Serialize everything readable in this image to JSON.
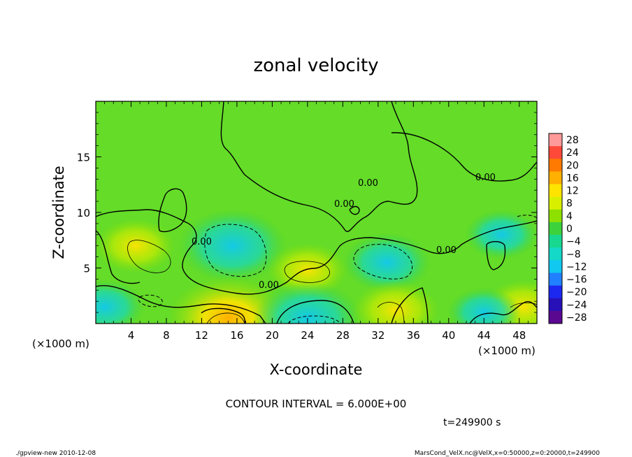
{
  "chart_data": {
    "type": "heatmap",
    "title": "zonal velocity",
    "xlabel": "X-coordinate",
    "ylabel": "Z-coordinate",
    "x_unit_label": "(×1000 m)",
    "x_unit_label_right": "(×1000 m)",
    "xlim": [
      0,
      50
    ],
    "ylim": [
      0,
      20
    ],
    "x_ticks": [
      4,
      8,
      12,
      16,
      20,
      24,
      28,
      32,
      36,
      40,
      44,
      48
    ],
    "y_ticks": [
      5,
      10,
      15
    ],
    "contour_interval_text": "CONTOUR INTERVAL = 6.000E+00",
    "time_text": "t=249900 s",
    "contour_labels": [
      "0.00",
      "0.00",
      "0.00",
      "0.00",
      "0.00",
      "0.00"
    ],
    "colorbar": {
      "levels": [
        28,
        24,
        20,
        16,
        12,
        8,
        4,
        0,
        -4,
        -8,
        -12,
        -16,
        -20,
        -24,
        -28
      ],
      "colors": [
        "#ff9a9a",
        "#ff4a3a",
        "#ff7a00",
        "#ffb000",
        "#ffe400",
        "#d8f000",
        "#8ee000",
        "#3cd23c",
        "#18d890",
        "#14d8c8",
        "#10c8f0",
        "#2080ff",
        "#1c28f0",
        "#2810b8",
        "#5a0890"
      ]
    },
    "field_features": [
      {
        "x": 15.5,
        "z": 7.0,
        "value": -10,
        "kind": "low"
      },
      {
        "x": 33.0,
        "z": 5.5,
        "value": -7,
        "kind": "low"
      },
      {
        "x": 4.5,
        "z": 7.0,
        "value": 6,
        "kind": "high"
      },
      {
        "x": 24.0,
        "z": 4.8,
        "value": 6,
        "kind": "high"
      },
      {
        "x": 15.0,
        "z": 0.5,
        "value": 12,
        "kind": "high"
      },
      {
        "x": 24.0,
        "z": 0.5,
        "value": -10,
        "kind": "low"
      },
      {
        "x": 34.0,
        "z": 1.2,
        "value": 7,
        "kind": "high"
      },
      {
        "x": 48.5,
        "z": 1.5,
        "value": 6,
        "kind": "high"
      },
      {
        "x": 1.0,
        "z": 1.5,
        "value": -6,
        "kind": "low"
      },
      {
        "x": 44.0,
        "z": 1.0,
        "value": -5,
        "kind": "low"
      },
      {
        "x": 46.0,
        "z": 8.0,
        "value": -5,
        "kind": "low"
      }
    ],
    "background_value": 2
  },
  "footer": {
    "left": "./gpview-new 2010-12-08",
    "right": "MarsCond_VelX.nc@VelX,x=0:50000,z=0:20000,t=249900"
  },
  "colors": {
    "background_field": "#64dc28",
    "contour_line": "#000000"
  }
}
